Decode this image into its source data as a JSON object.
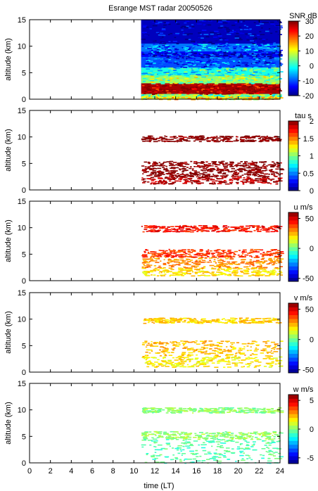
{
  "figure": {
    "title": "Esrange MST radar 20050526",
    "xlabel": "time (LT)"
  },
  "chart_data": [
    {
      "type": "heatmap",
      "panel": "snr",
      "title": "Esrange MST radar 20050526",
      "ylabel": "altitude (km)",
      "xlabel": "",
      "xlim": [
        0,
        24
      ],
      "ylim": [
        0,
        15
      ],
      "yticks": [
        0,
        5,
        10,
        15
      ],
      "data_start_time": 10.7,
      "colorbar": {
        "label": "SNR dB",
        "min": -20,
        "max": 30,
        "ticks": [
          30,
          20,
          10,
          0,
          -10,
          -20
        ],
        "colormap": "jet"
      },
      "layers": [
        {
          "alt_from": 0.0,
          "alt_to": 0.6,
          "value": 12
        },
        {
          "alt_from": 0.6,
          "alt_to": 1.0,
          "value": 5
        },
        {
          "alt_from": 1.0,
          "alt_to": 3.0,
          "value": 28
        },
        {
          "alt_from": 3.0,
          "alt_to": 4.5,
          "value": 6
        },
        {
          "alt_from": 4.5,
          "alt_to": 6.0,
          "value": 0
        },
        {
          "alt_from": 6.0,
          "alt_to": 8.0,
          "value": -10
        },
        {
          "alt_from": 8.0,
          "alt_to": 9.0,
          "value": -14
        },
        {
          "alt_from": 9.0,
          "alt_to": 10.5,
          "value": -8
        },
        {
          "alt_from": 10.5,
          "alt_to": 15.0,
          "value": -17
        }
      ]
    },
    {
      "type": "heatmap",
      "panel": "tau",
      "ylabel": "altitude (km)",
      "xlabel": "",
      "xlim": [
        0,
        24
      ],
      "ylim": [
        0,
        15
      ],
      "yticks": [
        0,
        5,
        10,
        15
      ],
      "data_start_time": 10.7,
      "colorbar": {
        "label": "tau s",
        "min": 0,
        "max": 2,
        "ticks": [
          2,
          1.5,
          1,
          0.5,
          0
        ],
        "colormap": "jet"
      },
      "layers": [
        {
          "alt_from": 1.2,
          "alt_to": 2.5,
          "value": 1.9
        },
        {
          "alt_from": 2.5,
          "alt_to": 4.0,
          "value": 2.0
        },
        {
          "alt_from": 4.0,
          "alt_to": 5.5,
          "value": 2.0
        },
        {
          "alt_from": 9.2,
          "alt_to": 10.3,
          "value": 2.0
        }
      ]
    },
    {
      "type": "heatmap",
      "panel": "u",
      "ylabel": "altitude (km)",
      "xlabel": "",
      "xlim": [
        0,
        24
      ],
      "ylim": [
        0,
        15
      ],
      "yticks": [
        0,
        5,
        10,
        15
      ],
      "data_start_time": 10.7,
      "colorbar": {
        "label": "u m/s",
        "min": -55,
        "max": 60,
        "ticks": [
          50,
          0,
          -50
        ],
        "colormap": "jet"
      },
      "layers": [
        {
          "alt_from": 1.0,
          "alt_to": 2.5,
          "value": 20
        },
        {
          "alt_from": 2.5,
          "alt_to": 4.5,
          "value": 30
        },
        {
          "alt_from": 4.5,
          "alt_to": 6.0,
          "value": 40
        },
        {
          "alt_from": 9.3,
          "alt_to": 10.5,
          "value": 45
        }
      ]
    },
    {
      "type": "heatmap",
      "panel": "v",
      "ylabel": "altitude (km)",
      "xlabel": "",
      "xlim": [
        0,
        24
      ],
      "ylim": [
        0,
        15
      ],
      "yticks": [
        0,
        5,
        10,
        15
      ],
      "data_start_time": 10.7,
      "colorbar": {
        "label": "v m/s",
        "min": -55,
        "max": 60,
        "ticks": [
          50,
          0,
          -50
        ],
        "colormap": "jet"
      },
      "layers": [
        {
          "alt_from": 1.0,
          "alt_to": 3.0,
          "value": 18
        },
        {
          "alt_from": 3.0,
          "alt_to": 6.0,
          "value": 24
        },
        {
          "alt_from": 9.3,
          "alt_to": 10.3,
          "value": 22
        }
      ]
    },
    {
      "type": "heatmap",
      "panel": "w",
      "ylabel": "altitude (km)",
      "xlabel": "time (LT)",
      "xlim": [
        0,
        24
      ],
      "ylim": [
        0,
        15
      ],
      "yticks": [
        0,
        5,
        10,
        15
      ],
      "xticks": [
        0,
        2,
        4,
        6,
        8,
        10,
        12,
        14,
        16,
        18,
        20,
        22,
        24
      ],
      "data_start_time": 10.7,
      "colorbar": {
        "label": "w m/s",
        "min": -6,
        "max": 6,
        "ticks": [
          5,
          0,
          -5
        ],
        "colormap": "jet"
      },
      "layers": [
        {
          "alt_from": 0.0,
          "alt_to": 4.5,
          "value": -0.5
        },
        {
          "alt_from": 4.5,
          "alt_to": 6.0,
          "value": 0.3
        },
        {
          "alt_from": 9.5,
          "alt_to": 10.5,
          "value": 0.2
        }
      ]
    }
  ]
}
